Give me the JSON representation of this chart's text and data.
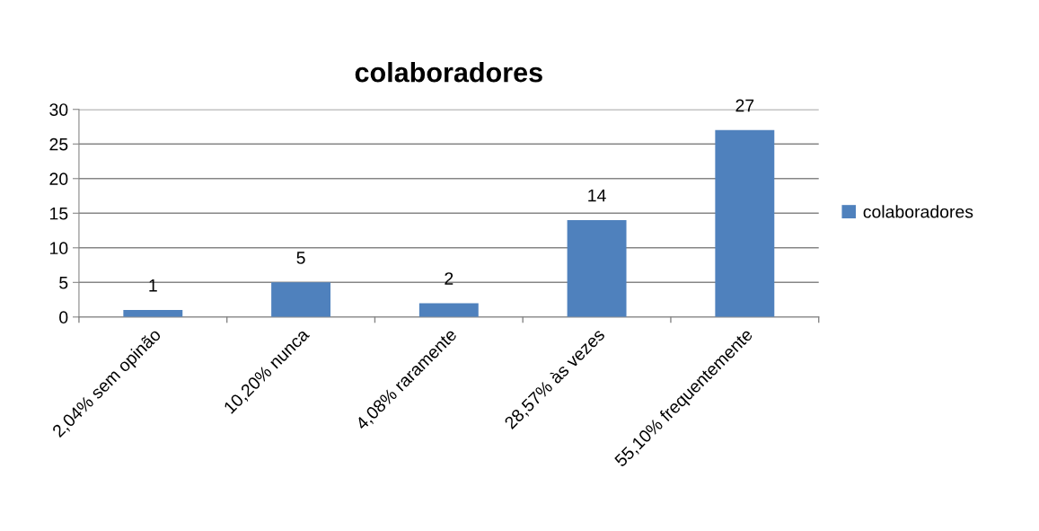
{
  "chart_data": {
    "type": "bar",
    "title": "colaboradores",
    "categories": [
      "2,04% sem opinão",
      "10,20% nunca",
      "4,08% raramente",
      "28,57% às vezes",
      "55,10% frequentemente"
    ],
    "series": [
      {
        "name": "colaboradores",
        "color": "#4f81bd",
        "values": [
          1,
          5,
          2,
          14,
          27
        ]
      }
    ],
    "ylim": [
      0,
      30
    ],
    "yticks": [
      0,
      5,
      10,
      15,
      20,
      25,
      30
    ],
    "grid": "y",
    "legend": "right",
    "data_labels": true
  }
}
